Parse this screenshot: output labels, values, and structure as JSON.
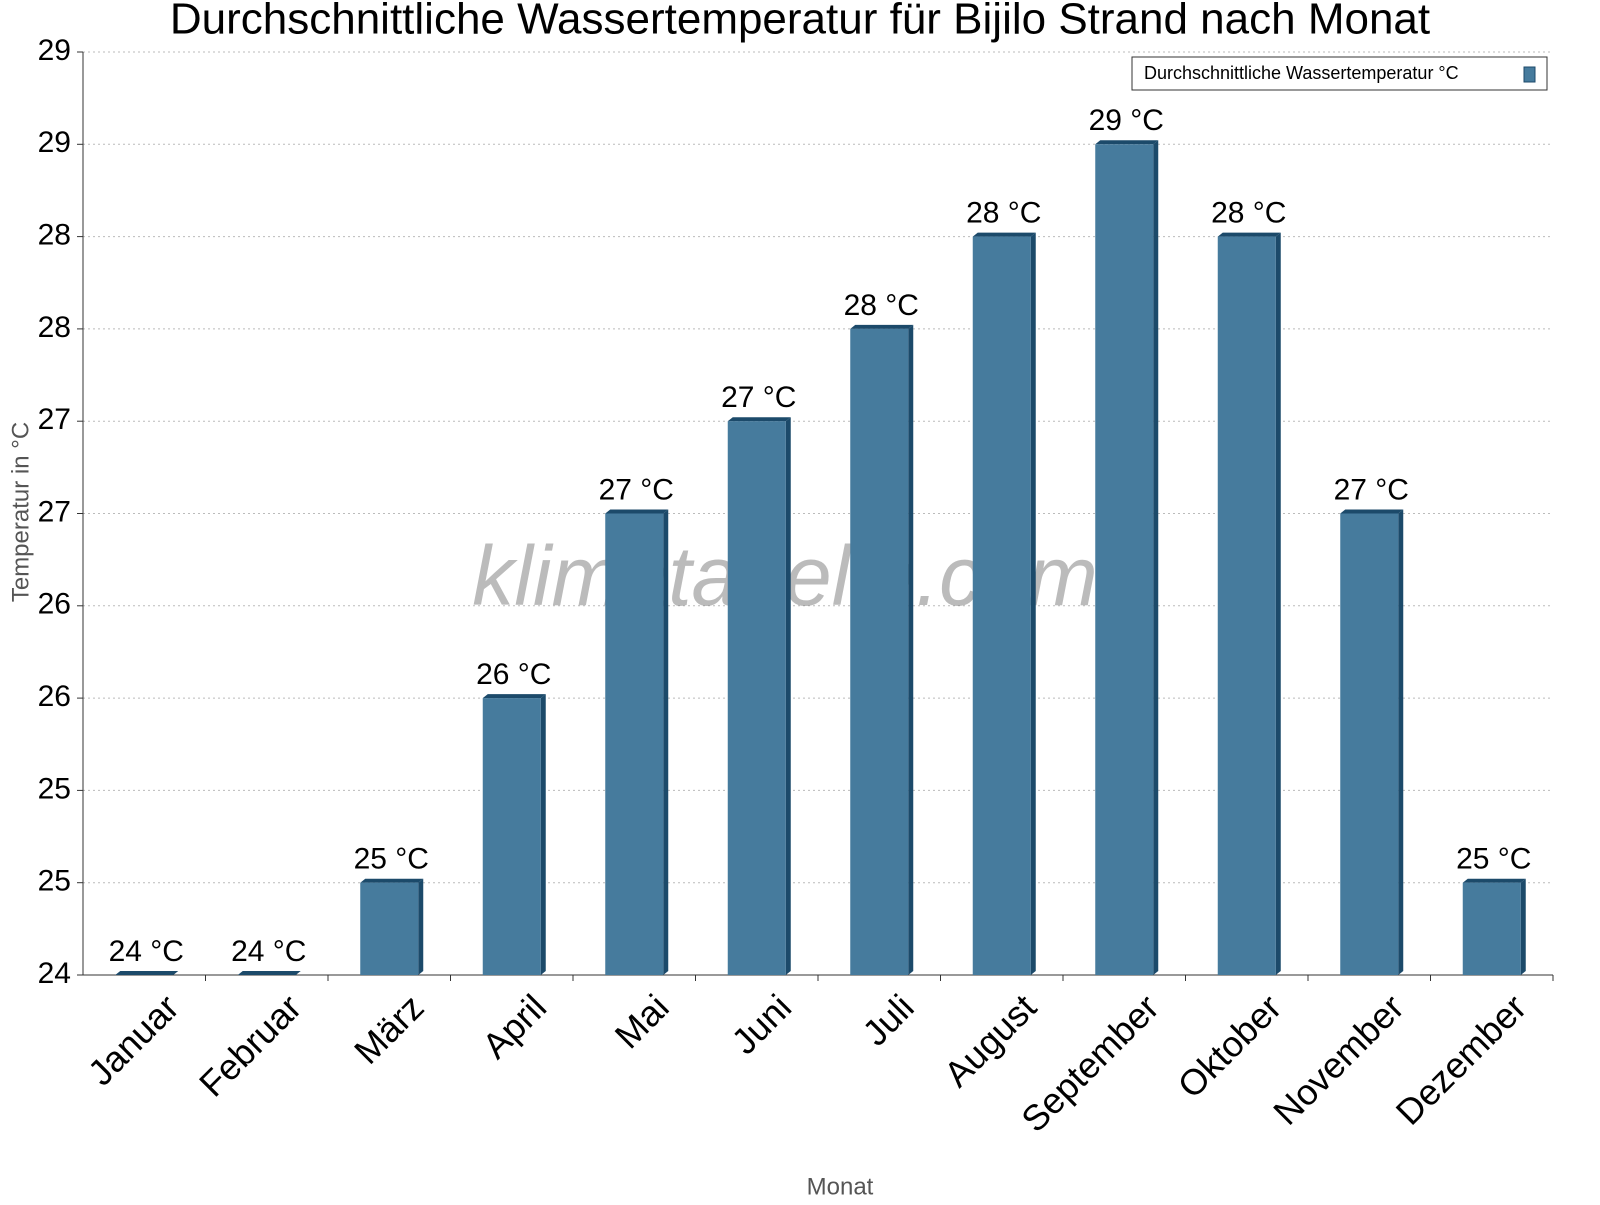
{
  "chart_data": {
    "type": "bar",
    "title": "Durchschnittliche Wassertemperatur für Bijilo Strand nach Monat",
    "x_label": "Monat",
    "y_label": "Temperatur in °C",
    "watermark": "klimatabelle.com",
    "categories": [
      "Januar",
      "Februar",
      "März",
      "April",
      "Mai",
      "Juni",
      "Juli",
      "August",
      "September",
      "Oktober",
      "November",
      "Dezember"
    ],
    "series": [
      {
        "name": "Durchschnittliche Wassertemperatur °C",
        "color": "#467b9d",
        "side_color": "#1c4a6a",
        "values": [
          24,
          24,
          24.5,
          25.5,
          26.5,
          27,
          27.5,
          28,
          28.5,
          28,
          26.5,
          24.5
        ],
        "value_labels": [
          "24 °C",
          "24 °C",
          "25 °C",
          "26 °C",
          "27 °C",
          "27 °C",
          "28 °C",
          "28 °C",
          "29 °C",
          "28 °C",
          "27 °C",
          "25 °C"
        ]
      }
    ],
    "ylim": [
      24,
      29
    ],
    "yticks": [
      24,
      {
        "value": 24.5,
        "label": "25"
      },
      25,
      {
        "value": 25.5,
        "label": "26"
      },
      26,
      {
        "value": 26.5,
        "label": "27"
      },
      27,
      {
        "value": 27.5,
        "label": "28"
      },
      28,
      {
        "value": 28.5,
        "label": "29"
      },
      29
    ],
    "grid": true,
    "legend": "upper right"
  }
}
